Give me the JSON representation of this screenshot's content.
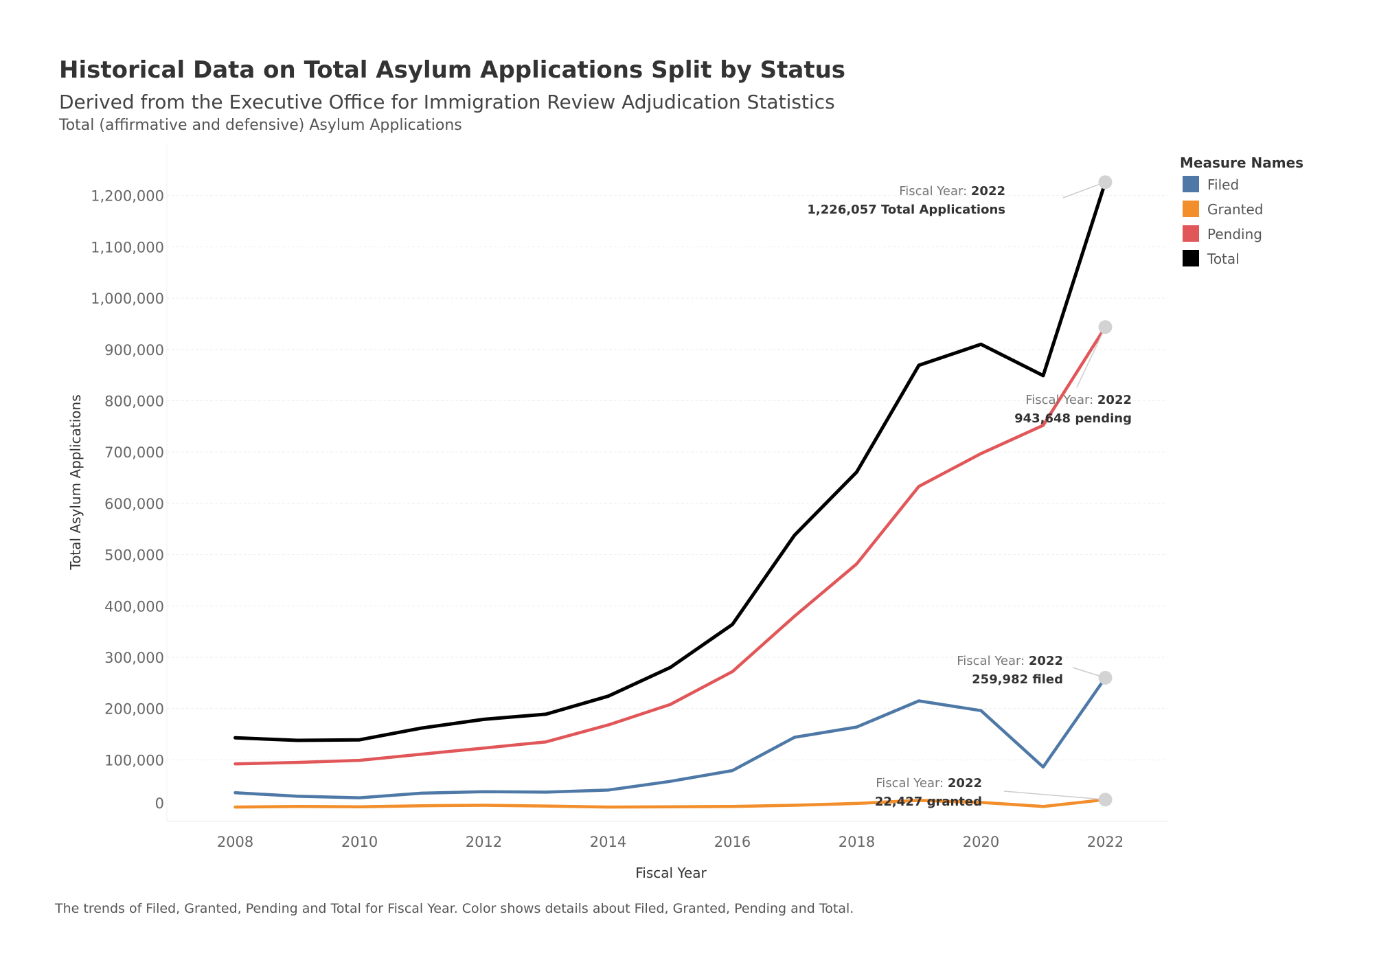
{
  "title": "Historical Data on Total Asylum Applications Split by Status",
  "subtitle": "Derived from the Executive Office for Immigration Review Adjudication Statistics",
  "subtitle2": "Total (affirmative and defensive) Asylum Applications",
  "caption": "The trends of Filed, Granted, Pending and Total for Fiscal Year.  Color shows details about Filed, Granted, Pending and Total.",
  "chart_data": {
    "type": "line",
    "xlabel": "Fiscal Year",
    "ylabel": "Total Asylum Applications",
    "xlim": [
      2006.9,
      2023.0
    ],
    "ylim": [
      -20000,
      1300000
    ],
    "x_ticks": [
      2008,
      2010,
      2012,
      2014,
      2016,
      2018,
      2020,
      2022
    ],
    "y_ticks": [
      0,
      100000,
      200000,
      300000,
      400000,
      500000,
      600000,
      700000,
      800000,
      900000,
      1000000,
      1100000,
      1200000
    ],
    "y_tick_labels": [
      "0",
      "100,000",
      "200,000",
      "300,000",
      "400,000",
      "500,000",
      "600,000",
      "700,000",
      "800,000",
      "900,000",
      "1,000,000",
      "1,100,000",
      "1,200,000"
    ],
    "grid": "horizontal",
    "legend": {
      "title": "Measure Names",
      "placement": "right"
    },
    "x": [
      2008,
      2009,
      2010,
      2011,
      2012,
      2013,
      2014,
      2015,
      2016,
      2017,
      2018,
      2019,
      2020,
      2021,
      2022
    ],
    "series": [
      {
        "name": "Filed",
        "color": "#4e79a7",
        "values": [
          36000,
          29000,
          26000,
          35000,
          38000,
          37000,
          41000,
          58000,
          79000,
          144000,
          164000,
          215000,
          196000,
          86000,
          259982
        ]
      },
      {
        "name": "Granted",
        "color": "#f28e2b",
        "values": [
          8000,
          9000,
          8500,
          10500,
          11500,
          10000,
          8000,
          8500,
          9000,
          11500,
          15000,
          21000,
          17000,
          9000,
          22427
        ]
      },
      {
        "name": "Pending",
        "color": "#e15759",
        "values": [
          92000,
          95000,
          99000,
          111000,
          123000,
          135000,
          168000,
          208000,
          272000,
          380000,
          482000,
          633000,
          697000,
          752000,
          943648
        ]
      },
      {
        "name": "Total",
        "color": "#000000",
        "values": [
          143000,
          138000,
          139000,
          162000,
          179000,
          189000,
          224000,
          280000,
          364000,
          538000,
          661000,
          869000,
          910000,
          849000,
          1226057
        ]
      }
    ],
    "annotations": [
      {
        "series": "Total",
        "prefix": "Fiscal Year: ",
        "year": "2022",
        "value_text": "1,226,057 Total Applications"
      },
      {
        "series": "Pending",
        "prefix": "Fiscal Year: ",
        "year": "2022",
        "value_text": "943,648 pending"
      },
      {
        "series": "Filed",
        "prefix": "Fiscal Year: ",
        "year": "2022",
        "value_text": "259,982 filed"
      },
      {
        "series": "Granted",
        "prefix": "Fiscal Year: ",
        "year": "2022",
        "value_text": "22,427 granted"
      }
    ]
  }
}
